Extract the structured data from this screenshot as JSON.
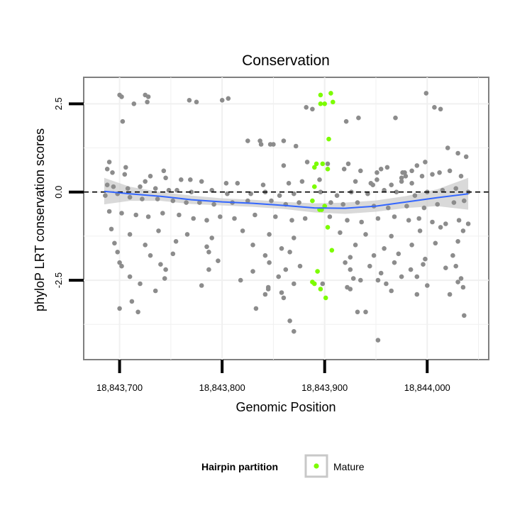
{
  "chart_data": {
    "type": "scatter",
    "title": "Conservation",
    "xlabel": "Genomic Position",
    "ylabel": "phyloP LRT conservation scores",
    "xlim": [
      18843665,
      18844060
    ],
    "ylim": [
      -4.75,
      3.25
    ],
    "x_ticks": [
      18843700,
      18843800,
      18843900,
      18844000
    ],
    "x_tick_labels": [
      "18,843,700",
      "18,843,800",
      "18,843,900",
      "18,844,000"
    ],
    "y_ticks": [
      2.5,
      0.0,
      -2.5
    ],
    "y_tick_labels": [
      "2.5",
      "0.0",
      "-2.5"
    ],
    "reference_line": {
      "y": 0,
      "style": "dashed"
    },
    "grid": true,
    "legend": {
      "title": "Hairpin partition",
      "position": "bottom",
      "entries": [
        {
          "label": "Mature",
          "color": "#7CFC00"
        }
      ]
    },
    "colors": {
      "background_point": "#8c8c8c",
      "mature_point": "#7CFC00",
      "smooth_line": "#3366FF",
      "smooth_band": "#cccccc"
    },
    "smooth": {
      "x": [
        18843685,
        18843710,
        18843740,
        18843770,
        18843800,
        18843830,
        18843860,
        18843890,
        18843920,
        18843950,
        18843980,
        18844010,
        18844040
      ],
      "y": [
        0.02,
        -0.05,
        -0.12,
        -0.22,
        -0.28,
        -0.32,
        -0.38,
        -0.45,
        -0.46,
        -0.4,
        -0.28,
        -0.16,
        -0.05
      ],
      "lower": [
        -0.35,
        -0.25,
        -0.25,
        -0.34,
        -0.38,
        -0.42,
        -0.48,
        -0.58,
        -0.62,
        -0.56,
        -0.45,
        -0.4,
        -0.5
      ],
      "upper": [
        0.4,
        0.15,
        0.0,
        -0.1,
        -0.18,
        -0.22,
        -0.28,
        -0.32,
        -0.3,
        -0.24,
        -0.11,
        0.08,
        0.4
      ]
    },
    "series": [
      {
        "name": "",
        "color": "#8c8c8c",
        "x": [
          18843700,
          18843702,
          18843714,
          18843725,
          18843728,
          18843768,
          18843775,
          18843800,
          18843806,
          18843825,
          18843837,
          18843838,
          18843847,
          18843850,
          18843860,
          18843872,
          18843883,
          18843903,
          18843923,
          18843935,
          18843951,
          18843955,
          18843961,
          18843976,
          18843978,
          18843979,
          18843985,
          18843990,
          18843998,
          18844020,
          18844030,
          18844038,
          18843688,
          18843693,
          18843705,
          18843730,
          18843745,
          18843760,
          18843780,
          18843815,
          18843840,
          18843865,
          18843878,
          18843895,
          18843930,
          18843945,
          18843965,
          18843975,
          18843985,
          18843995,
          18844005,
          18844012,
          18844022,
          18844033,
          18843688,
          18843694,
          18843708,
          18843720,
          18843735,
          18843748,
          18843756,
          18843770,
          18843790,
          18843805,
          18843828,
          18843842,
          18843856,
          18843870,
          18843896,
          18843912,
          18843926,
          18843942,
          18843958,
          18843970,
          18843988,
          18844000,
          18844015,
          18844028,
          18844040,
          18843686,
          18843698,
          18843710,
          18843722,
          18843737,
          18843752,
          18843765,
          18843778,
          18843792,
          18843810,
          18843825,
          18843848,
          18843862,
          18843875,
          18843906,
          18843918,
          18843932,
          18843948,
          18843962,
          18843980,
          18843997,
          18844010,
          18844026,
          18844036,
          18843690,
          18843702,
          18843716,
          18843728,
          18843742,
          18843758,
          18843772,
          18843785,
          18843798,
          18843812,
          18843832,
          18843852,
          18843868,
          18843881,
          18843905,
          18843922,
          18843936,
          18843952,
          18843968,
          18843982,
          18843992,
          18844005,
          18844018,
          18844031,
          18844040,
          18843692,
          18843710,
          18843738,
          18843766,
          18843790,
          18843820,
          18843846,
          18843870,
          18843915,
          18843940,
          18843965,
          18843993,
          18844013,
          18844035,
          18843695,
          18843725,
          18843755,
          18843785,
          18843830,
          18843858,
          18843930,
          18843958,
          18843985,
          18844008,
          18844030,
          18843698,
          18843730,
          18843752,
          18843787,
          18843842,
          18843866,
          18843925,
          18843948,
          18843972,
          18843998,
          18844025,
          18843700,
          18843740,
          18843796,
          18843846,
          18843876,
          18843920,
          18843944,
          18843968,
          18843996,
          18844028,
          18843702,
          18843745,
          18843830,
          18843862,
          18843925,
          18843955,
          18843984,
          18844018,
          18843710,
          18843744,
          18843818,
          18843855,
          18843928,
          18843952,
          18843990,
          18844033,
          18843720,
          18843780,
          18843845,
          18843870,
          18843922,
          18843960,
          18844000,
          18844030,
          18843735,
          18843842,
          18843858,
          18843925,
          18843965,
          18844022,
          18843700,
          18843718,
          18843787,
          18843845,
          18843898,
          18843935,
          18843975,
          18844035,
          18843712,
          18843833,
          18843860,
          18843940,
          18843990,
          18843866,
          18843932,
          18843870,
          18843952,
          18844036,
          18843703,
          18843727,
          18843882,
          18843933,
          18843888,
          18843921,
          18843969,
          18843999,
          18844007,
          18844013,
          18843690,
          18843706,
          18843725,
          18843743,
          18843769,
          18843804,
          18843860,
          18843919,
          18843947,
          18843951,
          18843975
        ],
        "y": [
          2.75,
          2.7,
          2.5,
          2.75,
          2.7,
          2.6,
          2.55,
          2.6,
          2.65,
          1.45,
          1.45,
          1.35,
          1.35,
          1.35,
          1.45,
          1.3,
          0.85,
          0.8,
          0.8,
          0.6,
          0.55,
          0.65,
          0.7,
          0.55,
          0.55,
          0.45,
          0.6,
          0.75,
          0.85,
          1.25,
          1.1,
          1.0,
          0.65,
          0.55,
          0.5,
          0.45,
          0.4,
          0.35,
          0.3,
          0.25,
          0.2,
          0.25,
          0.3,
          0.35,
          0.3,
          0.25,
          0.2,
          0.3,
          0.25,
          0.45,
          0.5,
          0.55,
          0.6,
          0.45,
          0.2,
          0.15,
          0.1,
          0.15,
          0.1,
          0.05,
          0.05,
          0.0,
          0.05,
          -0.05,
          -0.05,
          0.0,
          -0.1,
          -0.05,
          0.0,
          -0.1,
          0.0,
          -0.05,
          0.05,
          0.0,
          -0.1,
          0.0,
          0.05,
          0.1,
          0.0,
          -0.1,
          -0.05,
          -0.15,
          -0.2,
          -0.2,
          -0.25,
          -0.3,
          -0.3,
          -0.35,
          -0.3,
          -0.25,
          -0.25,
          -0.35,
          -0.3,
          -0.3,
          -0.35,
          -0.3,
          -0.4,
          -0.45,
          -0.4,
          -0.45,
          -0.35,
          -0.3,
          -0.25,
          -0.55,
          -0.6,
          -0.65,
          -0.7,
          -0.6,
          -0.65,
          -0.75,
          -0.8,
          -0.7,
          -0.75,
          -0.65,
          -0.7,
          -0.8,
          -0.75,
          -0.7,
          -0.8,
          -0.85,
          -0.75,
          -0.7,
          -0.8,
          -0.75,
          -0.85,
          -0.9,
          -0.8,
          -0.9,
          -1.05,
          -1.2,
          -1.1,
          -1.2,
          -1.3,
          -1.1,
          -1.2,
          -1.3,
          -1.15,
          -1.2,
          -1.25,
          -1.1,
          -1.0,
          -1.1,
          -1.45,
          -1.5,
          -1.4,
          -1.55,
          -1.5,
          -1.6,
          -1.5,
          -1.6,
          -1.5,
          -1.45,
          -1.4,
          -1.7,
          -1.8,
          -1.75,
          -1.7,
          -1.8,
          -1.7,
          -1.85,
          -1.8,
          -1.75,
          -1.9,
          -1.8,
          -2.0,
          -2.05,
          -1.95,
          -2.0,
          -2.1,
          -2.0,
          -2.1,
          -2.0,
          -2.05,
          -2.1,
          -2.1,
          -2.2,
          -2.25,
          -2.2,
          -2.2,
          -2.3,
          -2.2,
          -2.15,
          -2.4,
          -2.45,
          -2.5,
          -2.4,
          -2.45,
          -2.5,
          -2.4,
          -2.45,
          -2.6,
          -2.65,
          -2.7,
          -2.6,
          -2.7,
          -2.6,
          -2.65,
          -2.55,
          -2.8,
          -2.9,
          -2.85,
          -2.75,
          -2.8,
          -2.9,
          -3.3,
          -3.4,
          -2.2,
          -2.75,
          -2.6,
          -2.5,
          -2.4,
          -2.7,
          -3.1,
          -3.3,
          -3.0,
          -3.4,
          -2.9,
          -3.65,
          -3.4,
          -3.95,
          -4.2,
          -3.5,
          2.0,
          2.55,
          2.4,
          2.1,
          2.35,
          2.0,
          2.1,
          2.8,
          2.4,
          2.35,
          0.85,
          0.7,
          0.3,
          0.6,
          0.35,
          0.25,
          0.75,
          0.65,
          0.2,
          0.35,
          0.4
        ]
      },
      {
        "name": "Mature",
        "color": "#7CFC00",
        "x": [
          18843896,
          18843900,
          18843906,
          18843908,
          18843896,
          18843904,
          18843892,
          18843890,
          18843898,
          18843903,
          18843890,
          18843897,
          18843900,
          18843903,
          18843907,
          18843895,
          18843888,
          18843890,
          18843893,
          18843896,
          18843888,
          18843901
        ],
        "y": [
          2.75,
          2.5,
          2.8,
          2.55,
          2.5,
          1.5,
          0.8,
          0.7,
          0.8,
          0.65,
          0.15,
          -0.5,
          -0.4,
          -1.0,
          -1.65,
          -0.5,
          -2.55,
          -2.6,
          -2.25,
          -2.75,
          -0.25,
          -3.0
        ]
      }
    ]
  }
}
